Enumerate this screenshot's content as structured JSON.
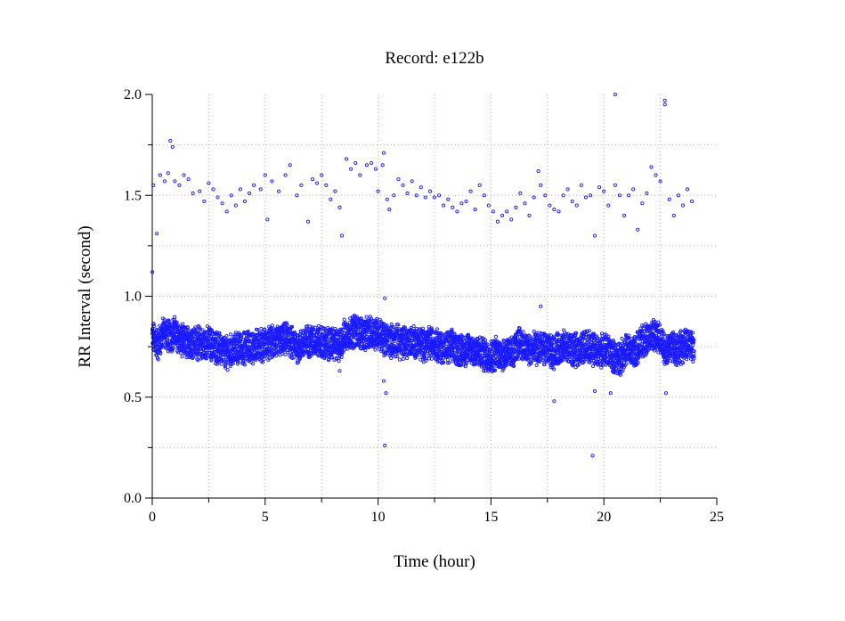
{
  "chart_data": {
    "type": "scatter",
    "title": "Record:  e122b",
    "xlabel": "Time (hour)",
    "ylabel": "RR Interval (second)",
    "xlim": [
      0,
      25
    ],
    "ylim": [
      0,
      2
    ],
    "x_ticks": [
      "0",
      "5",
      "10",
      "15",
      "20",
      "25"
    ],
    "y_ticks": [
      "0.0",
      "0.5",
      "1.0",
      "1.5",
      "2.0"
    ],
    "grid": true,
    "marker": "open-circle",
    "color": "#1a1aff",
    "series": [
      {
        "main_band": [
          [
            0.0,
            0.8
          ],
          [
            0.25,
            0.76
          ],
          [
            0.5,
            0.82
          ],
          [
            0.75,
            0.8
          ],
          [
            1.0,
            0.82
          ],
          [
            1.25,
            0.78
          ],
          [
            1.5,
            0.77
          ],
          [
            1.75,
            0.78
          ],
          [
            2.0,
            0.77
          ],
          [
            2.25,
            0.76
          ],
          [
            2.5,
            0.77
          ],
          [
            2.75,
            0.75
          ],
          [
            3.0,
            0.74
          ],
          [
            3.25,
            0.72
          ],
          [
            3.5,
            0.73
          ],
          [
            3.75,
            0.74
          ],
          [
            4.0,
            0.74
          ],
          [
            4.25,
            0.75
          ],
          [
            4.5,
            0.75
          ],
          [
            4.75,
            0.76
          ],
          [
            5.0,
            0.76
          ],
          [
            5.25,
            0.77
          ],
          [
            5.5,
            0.77
          ],
          [
            5.75,
            0.78
          ],
          [
            6.0,
            0.79
          ],
          [
            6.25,
            0.76
          ],
          [
            6.5,
            0.75
          ],
          [
            6.75,
            0.77
          ],
          [
            7.0,
            0.78
          ],
          [
            7.25,
            0.78
          ],
          [
            7.5,
            0.77
          ],
          [
            7.75,
            0.76
          ],
          [
            8.0,
            0.77
          ],
          [
            8.25,
            0.75
          ],
          [
            8.5,
            0.8
          ],
          [
            8.75,
            0.82
          ],
          [
            9.0,
            0.83
          ],
          [
            9.25,
            0.82
          ],
          [
            9.5,
            0.81
          ],
          [
            9.75,
            0.82
          ],
          [
            10.0,
            0.82
          ],
          [
            10.25,
            0.79
          ],
          [
            10.5,
            0.78
          ],
          [
            10.75,
            0.78
          ],
          [
            11.0,
            0.77
          ],
          [
            11.25,
            0.77
          ],
          [
            11.5,
            0.78
          ],
          [
            11.75,
            0.77
          ],
          [
            12.0,
            0.76
          ],
          [
            12.25,
            0.77
          ],
          [
            12.5,
            0.77
          ],
          [
            12.75,
            0.75
          ],
          [
            13.0,
            0.74
          ],
          [
            13.25,
            0.75
          ],
          [
            13.5,
            0.74
          ],
          [
            13.75,
            0.73
          ],
          [
            14.0,
            0.74
          ],
          [
            14.25,
            0.73
          ],
          [
            14.5,
            0.72
          ],
          [
            14.75,
            0.71
          ],
          [
            15.0,
            0.7
          ],
          [
            15.25,
            0.72
          ],
          [
            15.5,
            0.71
          ],
          [
            15.75,
            0.72
          ],
          [
            16.0,
            0.72
          ],
          [
            16.25,
            0.78
          ],
          [
            16.5,
            0.74
          ],
          [
            16.75,
            0.73
          ],
          [
            17.0,
            0.74
          ],
          [
            17.25,
            0.75
          ],
          [
            17.5,
            0.73
          ],
          [
            17.75,
            0.72
          ],
          [
            18.0,
            0.74
          ],
          [
            18.25,
            0.75
          ],
          [
            18.5,
            0.74
          ],
          [
            18.75,
            0.73
          ],
          [
            19.0,
            0.74
          ],
          [
            19.25,
            0.76
          ],
          [
            19.5,
            0.74
          ],
          [
            19.75,
            0.72
          ],
          [
            20.0,
            0.74
          ],
          [
            20.25,
            0.72
          ],
          [
            20.5,
            0.69
          ],
          [
            20.75,
            0.7
          ],
          [
            21.0,
            0.74
          ],
          [
            21.25,
            0.72
          ],
          [
            21.5,
            0.74
          ],
          [
            21.75,
            0.78
          ],
          [
            22.0,
            0.8
          ],
          [
            22.25,
            0.8
          ],
          [
            22.5,
            0.79
          ],
          [
            22.75,
            0.73
          ],
          [
            23.0,
            0.76
          ],
          [
            23.25,
            0.74
          ],
          [
            23.5,
            0.75
          ],
          [
            23.75,
            0.76
          ],
          [
            24.0,
            0.74
          ]
        ],
        "upper_points": [
          [
            0.05,
            1.55
          ],
          [
            0.2,
            1.31
          ],
          [
            0.35,
            1.6
          ],
          [
            0.55,
            1.57
          ],
          [
            0.7,
            1.61
          ],
          [
            0.8,
            1.77
          ],
          [
            0.9,
            1.74
          ],
          [
            1.0,
            1.57
          ],
          [
            1.2,
            1.55
          ],
          [
            1.4,
            1.6
          ],
          [
            1.6,
            1.58
          ],
          [
            1.8,
            1.51
          ],
          [
            2.1,
            1.52
          ],
          [
            2.3,
            1.47
          ],
          [
            2.5,
            1.56
          ],
          [
            2.7,
            1.53
          ],
          [
            2.9,
            1.49
          ],
          [
            3.1,
            1.46
          ],
          [
            3.3,
            1.42
          ],
          [
            3.5,
            1.5
          ],
          [
            3.7,
            1.45
          ],
          [
            3.9,
            1.53
          ],
          [
            4.1,
            1.47
          ],
          [
            4.3,
            1.51
          ],
          [
            4.5,
            1.55
          ],
          [
            4.8,
            1.53
          ],
          [
            5.0,
            1.6
          ],
          [
            5.1,
            1.38
          ],
          [
            5.3,
            1.57
          ],
          [
            5.6,
            1.52
          ],
          [
            5.9,
            1.6
          ],
          [
            6.1,
            1.65
          ],
          [
            6.4,
            1.5
          ],
          [
            6.6,
            1.55
          ],
          [
            6.9,
            1.37
          ],
          [
            7.1,
            1.58
          ],
          [
            7.3,
            1.56
          ],
          [
            7.5,
            1.6
          ],
          [
            7.7,
            1.55
          ],
          [
            7.9,
            1.48
          ],
          [
            8.1,
            1.52
          ],
          [
            8.3,
            1.44
          ],
          [
            8.4,
            1.3
          ],
          [
            8.6,
            1.68
          ],
          [
            8.8,
            1.63
          ],
          [
            9.0,
            1.66
          ],
          [
            9.2,
            1.6
          ],
          [
            9.5,
            1.65
          ],
          [
            9.7,
            1.66
          ],
          [
            9.9,
            1.63
          ],
          [
            10.0,
            1.52
          ],
          [
            10.2,
            1.65
          ],
          [
            10.25,
            1.71
          ],
          [
            10.4,
            1.48
          ],
          [
            10.5,
            1.43
          ],
          [
            10.7,
            1.5
          ],
          [
            10.9,
            1.58
          ],
          [
            11.1,
            1.55
          ],
          [
            11.3,
            1.51
          ],
          [
            11.5,
            1.57
          ],
          [
            11.7,
            1.5
          ],
          [
            11.9,
            1.54
          ],
          [
            12.1,
            1.49
          ],
          [
            12.3,
            1.52
          ],
          [
            12.5,
            1.49
          ],
          [
            12.7,
            1.5
          ],
          [
            12.9,
            1.45
          ],
          [
            13.1,
            1.48
          ],
          [
            13.3,
            1.44
          ],
          [
            13.5,
            1.42
          ],
          [
            13.7,
            1.46
          ],
          [
            13.9,
            1.47
          ],
          [
            14.1,
            1.52
          ],
          [
            14.3,
            1.43
          ],
          [
            14.5,
            1.55
          ],
          [
            14.7,
            1.5
          ],
          [
            14.9,
            1.45
          ],
          [
            15.1,
            1.42
          ],
          [
            15.3,
            1.37
          ],
          [
            15.5,
            1.4
          ],
          [
            15.7,
            1.42
          ],
          [
            15.9,
            1.38
          ],
          [
            16.1,
            1.44
          ],
          [
            16.3,
            1.51
          ],
          [
            16.5,
            1.46
          ],
          [
            16.7,
            1.4
          ],
          [
            16.9,
            1.49
          ],
          [
            17.1,
            1.62
          ],
          [
            17.2,
            1.55
          ],
          [
            17.4,
            1.5
          ],
          [
            17.6,
            1.45
          ],
          [
            17.8,
            1.43
          ],
          [
            18.0,
            1.42
          ],
          [
            18.2,
            1.5
          ],
          [
            18.4,
            1.53
          ],
          [
            18.6,
            1.47
          ],
          [
            18.8,
            1.45
          ],
          [
            19.0,
            1.55
          ],
          [
            19.2,
            1.49
          ],
          [
            19.4,
            1.5
          ],
          [
            19.6,
            1.3
          ],
          [
            19.8,
            1.54
          ],
          [
            20.0,
            1.52
          ],
          [
            20.2,
            1.45
          ],
          [
            20.5,
            1.55
          ],
          [
            20.7,
            1.5
          ],
          [
            20.9,
            1.4
          ],
          [
            21.1,
            1.5
          ],
          [
            21.3,
            1.53
          ],
          [
            21.5,
            1.33
          ],
          [
            21.7,
            1.46
          ],
          [
            21.9,
            1.51
          ],
          [
            22.1,
            1.64
          ],
          [
            22.3,
            1.6
          ],
          [
            22.5,
            1.57
          ],
          [
            22.7,
            1.97
          ],
          [
            22.9,
            1.48
          ],
          [
            23.1,
            1.4
          ],
          [
            23.3,
            1.5
          ],
          [
            23.5,
            1.45
          ],
          [
            23.7,
            1.53
          ],
          [
            23.9,
            1.47
          ]
        ],
        "outliers": [
          [
            0.0,
            1.12
          ],
          [
            10.3,
            0.99
          ],
          [
            10.35,
            0.52
          ],
          [
            10.25,
            0.58
          ],
          [
            10.3,
            0.26
          ],
          [
            17.8,
            0.48
          ],
          [
            19.5,
            0.21
          ],
          [
            20.5,
            2.0
          ],
          [
            22.7,
            1.95
          ],
          [
            22.75,
            0.52
          ],
          [
            17.2,
            0.95
          ],
          [
            8.3,
            0.63
          ],
          [
            19.6,
            0.53
          ],
          [
            20.3,
            0.52
          ]
        ]
      }
    ]
  }
}
